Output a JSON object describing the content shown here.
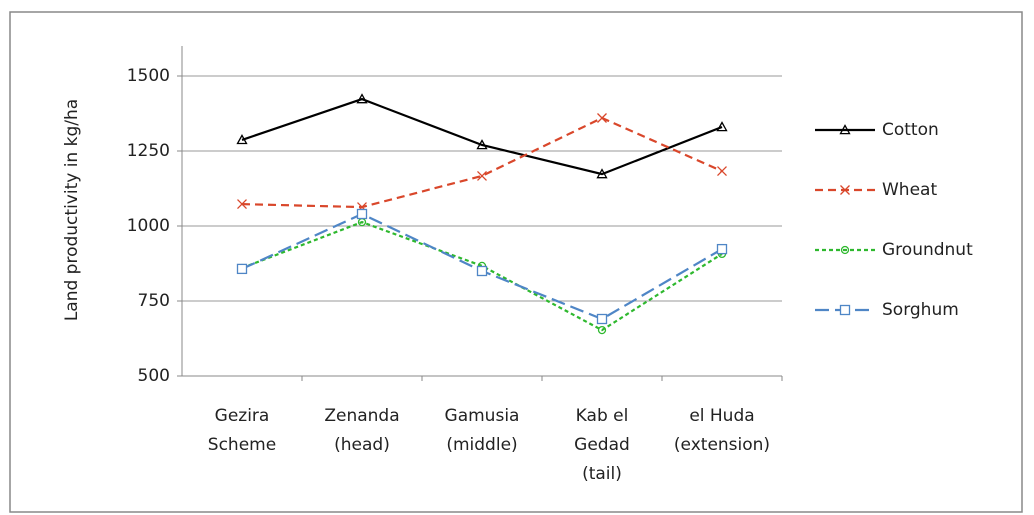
{
  "chart_data": {
    "type": "line",
    "y_label": "Land productivity in kg/ha",
    "categories": [
      [
        "Gezira",
        "Scheme"
      ],
      [
        "Zenanda",
        "(head)"
      ],
      [
        "Gamusia",
        "(middle)"
      ],
      [
        "Kab el",
        "Gedad",
        "(tail)"
      ],
      [
        "el Huda",
        "(extension)"
      ]
    ],
    "series": [
      {
        "name": "Cotton",
        "color": "#000000",
        "dash": "none",
        "marker": "triangle",
        "values": [
          1287,
          1423,
          1270,
          1173,
          1330
        ]
      },
      {
        "name": "Wheat",
        "color": "#d9472b",
        "dash": "8 5",
        "marker": "x",
        "values": [
          1073,
          1063,
          1167,
          1360,
          1183
        ]
      },
      {
        "name": "Groundnut",
        "color": "#2eb82e",
        "dash": "4 3",
        "marker": "circle",
        "values": [
          860,
          1013,
          867,
          653,
          907
        ]
      },
      {
        "name": "Sorghum",
        "color": "#4f86c6",
        "dash": "14 6",
        "marker": "square",
        "values": [
          857,
          1040,
          850,
          690,
          923
        ]
      }
    ],
    "ylim": [
      500,
      1600
    ],
    "yticks": [
      500,
      750,
      1000,
      1250,
      1500
    ],
    "grid": true,
    "legend": "right"
  }
}
